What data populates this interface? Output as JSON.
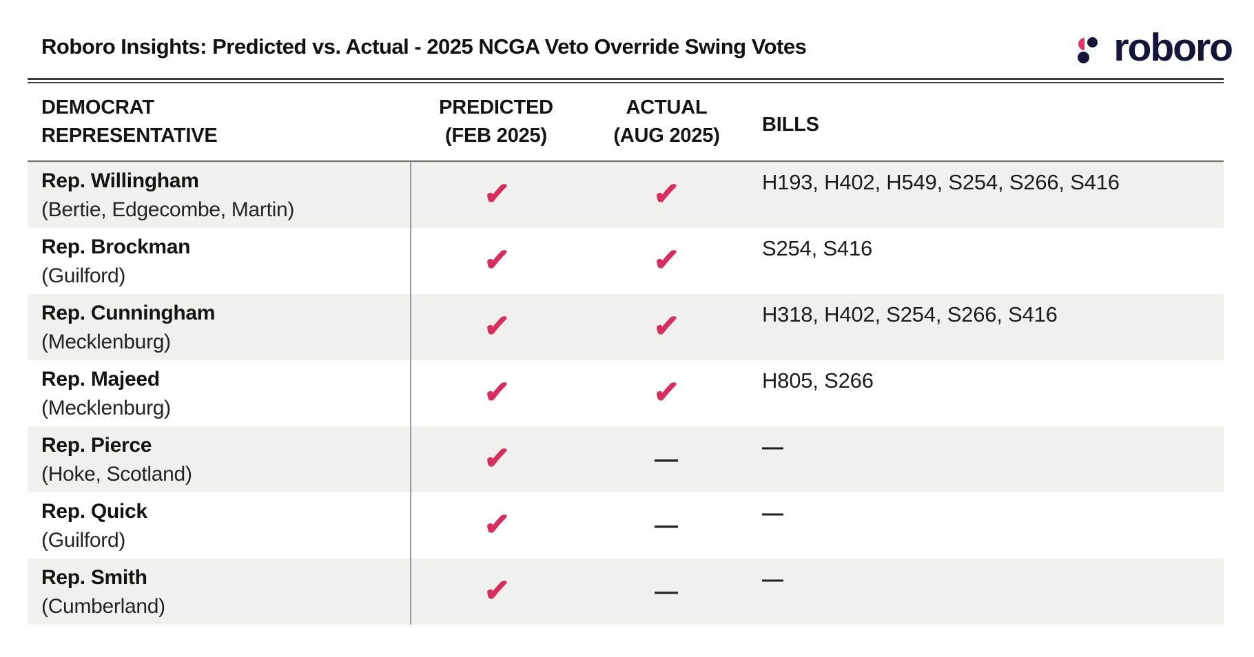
{
  "header": {
    "title": "Roboro Insights: Predicted vs. Actual - 2025 NCGA Veto Override Swing Votes",
    "brand": "roboro"
  },
  "symbols": {
    "check": "✓",
    "dash": "—"
  },
  "colors": {
    "accent_pink": "#D92D60",
    "logo_pink": "#E8336A",
    "brand_navy": "#15153A",
    "row_stripe": "#F0F0EE",
    "rule_dark": "#3B3B3B",
    "divider_gray": "#9A9A9A"
  },
  "chart_data": {
    "type": "table",
    "title": "Roboro Insights: Predicted vs. Actual - 2025 NCGA Veto Override Swing Votes",
    "columns": [
      {
        "line1": "DEMOCRAT",
        "line2": "REPRESENTATIVE"
      },
      {
        "line1": "PREDICTED",
        "line2": "(FEB 2025)"
      },
      {
        "line1": "ACTUAL",
        "line2": "(AUG 2025)"
      },
      {
        "line1": "BILLS",
        "line2": ""
      }
    ],
    "rows": [
      {
        "representative": "Rep. Willingham",
        "districts": "(Bertie, Edgecombe, Martin)",
        "predicted": "✓",
        "actual": "✓",
        "bills": "H193, H402, H549, S254, S266, S416"
      },
      {
        "representative": "Rep. Brockman",
        "districts": "(Guilford)",
        "predicted": "✓",
        "actual": "✓",
        "bills": "S254, S416"
      },
      {
        "representative": "Rep. Cunningham",
        "districts": "(Mecklenburg)",
        "predicted": "✓",
        "actual": "✓",
        "bills": "H318, H402, S254, S266, S416"
      },
      {
        "representative": "Rep. Majeed",
        "districts": "(Mecklenburg)",
        "predicted": "✓",
        "actual": "✓",
        "bills": "H805, S266"
      },
      {
        "representative": "Rep. Pierce",
        "districts": "(Hoke, Scotland)",
        "predicted": "✓",
        "actual": "—",
        "bills": "—"
      },
      {
        "representative": "Rep. Quick",
        "districts": "(Guilford)",
        "predicted": "✓",
        "actual": "—",
        "bills": "—"
      },
      {
        "representative": "Rep. Smith",
        "districts": "(Cumberland)",
        "predicted": "✓",
        "actual": "—",
        "bills": "—"
      }
    ]
  }
}
